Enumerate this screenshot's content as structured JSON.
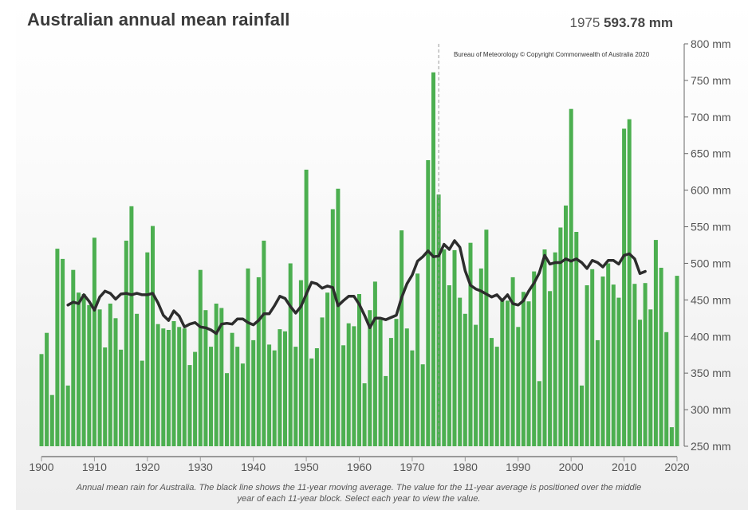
{
  "header": {
    "title": "Australian annual mean rainfall",
    "selected_year": "1975",
    "selected_value": "593.78 mm"
  },
  "copyright": "Bureau of Meteorology © Copyright Commonwealth of Australia 2020",
  "caption": {
    "line1": "Annual mean rain for Australia. The black line shows the 11-year moving average. The value for the 11-year average is positioned over the middle",
    "line2": "year of each 11-year block. Select each year to view the value."
  },
  "colors": {
    "bar": "#4caf50",
    "line": "#2d2d2d",
    "axis": "#666666",
    "marker": "#999999"
  },
  "chart_data": {
    "type": "bar",
    "title": "Australian annual mean rainfall",
    "xlabel": "",
    "ylabel": "",
    "unit": "mm",
    "xlim": [
      1900,
      2020
    ],
    "ylim": [
      250,
      800
    ],
    "grid": false,
    "y_axis_position": "right",
    "yticks": [
      250,
      300,
      350,
      400,
      450,
      500,
      550,
      600,
      650,
      700,
      750,
      800
    ],
    "ytick_labels": [
      "250 mm",
      "300 mm",
      "350 mm",
      "400 mm",
      "450 mm",
      "500 mm",
      "550 mm",
      "600 mm",
      "650 mm",
      "700 mm",
      "750 mm",
      "800 mm"
    ],
    "xticks": [
      1900,
      1910,
      1920,
      1930,
      1940,
      1950,
      1960,
      1970,
      1980,
      1990,
      2000,
      2010,
      2020
    ],
    "xtick_labels": [
      "1900",
      "1910",
      "1920",
      "1930",
      "1940",
      "1950",
      "1960",
      "1970",
      "1980",
      "1990",
      "2000",
      "2010",
      "2020"
    ],
    "selected": {
      "year": 1975,
      "value": 593.78
    },
    "series": [
      {
        "name": "Annual mean rainfall",
        "type": "bar",
        "start_year": 1900,
        "values": [
          376,
          405,
          320,
          520,
          506,
          333,
          491,
          460,
          458,
          443,
          535,
          437,
          385,
          445,
          425,
          382,
          531,
          578,
          431,
          367,
          515,
          551,
          417,
          411,
          409,
          421,
          413,
          411,
          361,
          379,
          491,
          436,
          386,
          445,
          439,
          350,
          405,
          386,
          363,
          493,
          395,
          481,
          531,
          389,
          381,
          410,
          407,
          500,
          386,
          477,
          628,
          370,
          384,
          426,
          460,
          574,
          602,
          388,
          418,
          414,
          458,
          336,
          436,
          475,
          423,
          346,
          398,
          424,
          545,
          411,
          381,
          486,
          362,
          641,
          761,
          594,
          519,
          470,
          518,
          453,
          431,
          528,
          416,
          493,
          546,
          398,
          386,
          449,
          449,
          481,
          413,
          461,
          448,
          489,
          339,
          519,
          462,
          515,
          549,
          579,
          711,
          543,
          333,
          470,
          492,
          395,
          482,
          500,
          471,
          453,
          684,
          697,
          472,
          423,
          473,
          437,
          532,
          494,
          406,
          276,
          483
        ]
      },
      {
        "name": "11-year moving average",
        "type": "line",
        "start_year": 1905,
        "values": [
          443,
          447,
          445,
          457,
          448,
          436,
          454,
          462,
          459,
          451,
          458,
          459,
          457,
          459,
          457,
          457,
          459,
          446,
          429,
          422,
          435,
          428,
          413,
          417,
          419,
          413,
          412,
          409,
          404,
          417,
          418,
          417,
          424,
          424,
          419,
          416,
          422,
          431,
          431,
          442,
          455,
          452,
          441,
          432,
          441,
          458,
          474,
          472,
          466,
          469,
          467,
          442,
          449,
          455,
          455,
          444,
          429,
          412,
          425,
          425,
          423,
          426,
          429,
          453,
          472,
          484,
          503,
          509,
          517,
          509,
          510,
          526,
          519,
          531,
          522,
          490,
          470,
          465,
          462,
          458,
          454,
          457,
          449,
          457,
          445,
          443,
          449,
          462,
          473,
          487,
          511,
          499,
          501,
          501,
          506,
          503,
          506,
          501,
          493,
          504,
          501,
          495,
          504,
          504,
          499,
          511,
          513,
          506,
          486,
          489
        ]
      }
    ]
  }
}
